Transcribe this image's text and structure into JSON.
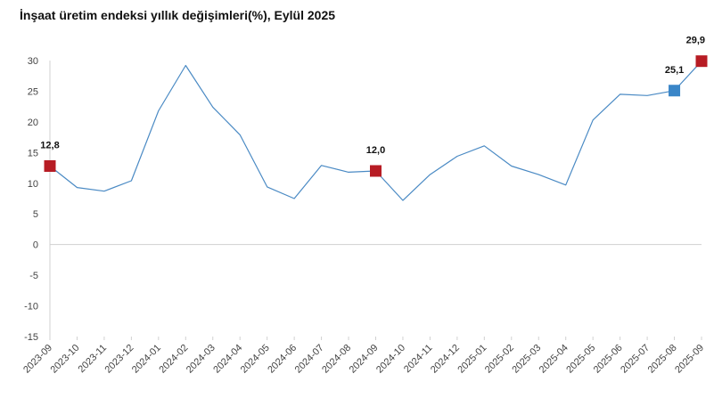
{
  "chart_data": {
    "type": "line",
    "title": "İnşaat üretim endeksi yıllık değişimleri(%), Eylül 2025",
    "xlabel": "",
    "ylabel": "",
    "ylim": [
      -15,
      30
    ],
    "yticks": [
      30,
      25,
      20,
      15,
      10,
      5,
      0,
      -5,
      -10,
      -15
    ],
    "grid": false,
    "legend": "none",
    "categories": [
      "2023-09",
      "2023-10",
      "2023-11",
      "2023-12",
      "2024-01",
      "2024-02",
      "2024-03",
      "2024-04",
      "2024-05",
      "2024-06",
      "2024-07",
      "2024-08",
      "2024-09",
      "2024-10",
      "2024-11",
      "2024-12",
      "2025-01",
      "2025-02",
      "2025-03",
      "2025-04",
      "2025-05",
      "2025-06",
      "2025-07",
      "2025-08",
      "2025-09"
    ],
    "series": [
      {
        "color": "#4a8ac4",
        "values": [
          12.8,
          9.3,
          8.7,
          10.4,
          21.8,
          29.2,
          22.4,
          17.9,
          9.4,
          7.5,
          12.9,
          11.8,
          12.0,
          7.2,
          11.4,
          14.4,
          16.1,
          12.8,
          11.4,
          9.7,
          20.3,
          24.5,
          24.3,
          25.1,
          29.9
        ]
      }
    ],
    "highlights": [
      {
        "index": 0,
        "label": "12,8",
        "color": "#b71c24"
      },
      {
        "index": 12,
        "label": "12,0",
        "color": "#b71c24"
      },
      {
        "index": 23,
        "label": "25,1",
        "color": "#3a86c8"
      },
      {
        "index": 24,
        "label": "29,9",
        "color": "#b71c24"
      }
    ]
  }
}
